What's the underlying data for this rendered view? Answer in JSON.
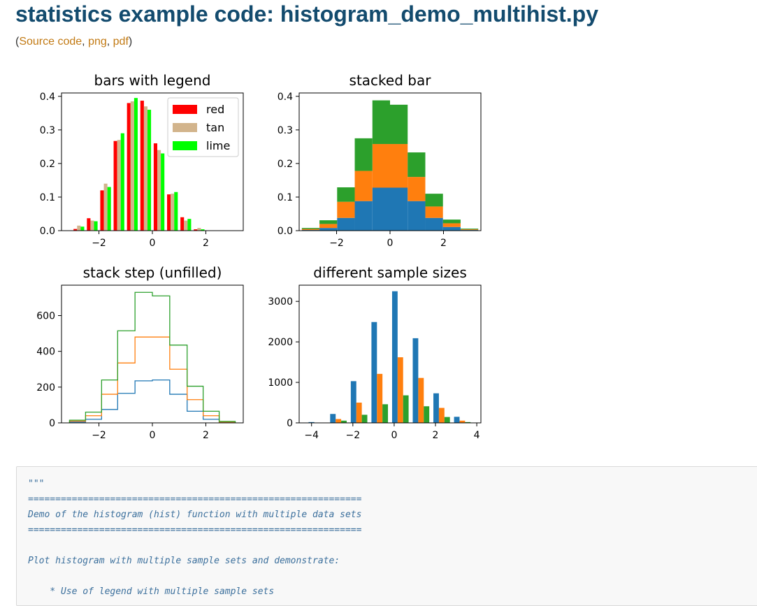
{
  "page": {
    "title": "statistics example code: histogram_demo_multihist.py",
    "links": {
      "open": "(",
      "source": "Source code",
      "sep1": ", ",
      "png": "png",
      "sep2": ", ",
      "pdf": "pdf",
      "close": ")"
    }
  },
  "colors": {
    "title": "#134b6e",
    "link": "#c27a14",
    "red": "#ff0000",
    "tan": "#d2b48c",
    "lime": "#00ff00",
    "c0": "#1f77b4",
    "c1": "#ff7f0e",
    "c2": "#2ca02c"
  },
  "chart_data": [
    {
      "type": "bar",
      "title": "bars with legend",
      "xlim": [
        -3.4,
        3.4
      ],
      "ylim": [
        0,
        0.41
      ],
      "xticks": [
        -2,
        0,
        2
      ],
      "yticks": [
        0.0,
        0.1,
        0.2,
        0.3,
        0.4
      ],
      "ytick_labels": [
        "0.0",
        "0.1",
        "0.2",
        "0.3",
        "0.4"
      ],
      "bin_centers": [
        -2.75,
        -2.25,
        -1.75,
        -1.25,
        -0.75,
        -0.25,
        0.25,
        0.75,
        1.25,
        1.75,
        2.25,
        2.75
      ],
      "bin_width": 0.5,
      "legend_position": "upper-right",
      "series": [
        {
          "name": "red",
          "color": "#ff0000",
          "values": [
            0.005,
            0.037,
            0.12,
            0.267,
            0.38,
            0.387,
            0.26,
            0.108,
            0.04,
            0.004,
            0.0,
            0.0
          ]
        },
        {
          "name": "tan",
          "color": "#d2b48c",
          "values": [
            0.015,
            0.03,
            0.14,
            0.27,
            0.385,
            0.37,
            0.24,
            0.11,
            0.03,
            0.008,
            0.0,
            0.0
          ]
        },
        {
          "name": "lime",
          "color": "#00ff00",
          "values": [
            0.012,
            0.028,
            0.13,
            0.29,
            0.395,
            0.36,
            0.23,
            0.115,
            0.035,
            0.004,
            0.0,
            0.0
          ]
        }
      ]
    },
    {
      "type": "bar",
      "stacked": true,
      "title": "stacked bar",
      "xlim": [
        -3.4,
        3.4
      ],
      "ylim": [
        0,
        0.41
      ],
      "xticks": [
        -2,
        0,
        2
      ],
      "yticks": [
        0.0,
        0.1,
        0.2,
        0.3,
        0.4
      ],
      "ytick_labels": [
        "0.0",
        "0.1",
        "0.2",
        "0.3",
        "0.4"
      ],
      "bin_edges": [
        -3.3,
        -2.64,
        -1.98,
        -1.32,
        -0.66,
        0.0,
        0.66,
        1.32,
        1.98,
        2.64,
        3.3
      ],
      "series": [
        {
          "color": "#1f77b4",
          "values": [
            0.002,
            0.008,
            0.038,
            0.088,
            0.128,
            0.128,
            0.088,
            0.038,
            0.011,
            0.002
          ]
        },
        {
          "color": "#ff7f0e",
          "values": [
            0.003,
            0.012,
            0.048,
            0.09,
            0.13,
            0.13,
            0.072,
            0.034,
            0.011,
            0.002
          ]
        },
        {
          "color": "#2ca02c",
          "values": [
            0.003,
            0.011,
            0.043,
            0.097,
            0.13,
            0.117,
            0.073,
            0.038,
            0.011,
            0.002
          ]
        }
      ]
    },
    {
      "type": "line",
      "step": true,
      "stacked": true,
      "title": "stack step (unfilled)",
      "xlim": [
        -3.4,
        3.4
      ],
      "ylim": [
        0,
        770
      ],
      "xticks": [
        -2,
        0,
        2
      ],
      "yticks": [
        0,
        200,
        400,
        600
      ],
      "ytick_labels": [
        "0",
        "200",
        "400",
        "600"
      ],
      "bin_edges": [
        -3.1,
        -2.5,
        -1.9,
        -1.3,
        -0.65,
        0.0,
        0.65,
        1.3,
        1.9,
        2.5,
        3.1
      ],
      "series": [
        {
          "color": "#1f77b4",
          "values": [
            5,
            20,
            75,
            165,
            235,
            240,
            160,
            65,
            20,
            2
          ]
        },
        {
          "color": "#ff7f0e",
          "values": [
            10,
            40,
            160,
            335,
            480,
            480,
            300,
            130,
            40,
            5
          ]
        },
        {
          "color": "#2ca02c",
          "values": [
            15,
            60,
            240,
            515,
            730,
            710,
            435,
            205,
            65,
            8
          ]
        }
      ]
    },
    {
      "type": "bar",
      "title": "different sample sizes",
      "xlim": [
        -4.6,
        4.2
      ],
      "ylim": [
        0,
        3400
      ],
      "xticks": [
        -4,
        -2,
        0,
        2,
        4
      ],
      "yticks": [
        0,
        1000,
        2000,
        3000
      ],
      "ytick_labels": [
        "0",
        "1000",
        "2000",
        "3000"
      ],
      "bin_edges": [
        -4.25,
        -3.2,
        -2.2,
        -1.2,
        -0.2,
        0.8,
        1.8,
        2.8,
        3.8
      ],
      "series": [
        {
          "color": "#1f77b4",
          "values": [
            20,
            220,
            1030,
            2490,
            3250,
            2090,
            730,
            150
          ]
        },
        {
          "color": "#ff7f0e",
          "values": [
            0,
            95,
            500,
            1210,
            1620,
            1110,
            370,
            55
          ]
        },
        {
          "color": "#2ca02c",
          "values": [
            0,
            55,
            200,
            460,
            680,
            410,
            145,
            20
          ]
        }
      ]
    }
  ],
  "code": {
    "lines": [
      "\"\"\"",
      "=============================================================",
      "Demo of the histogram (hist) function with multiple data sets",
      "=============================================================",
      "",
      "Plot histogram with multiple sample sets and demonstrate:",
      "",
      "    * Use of legend with multiple sample sets"
    ]
  }
}
